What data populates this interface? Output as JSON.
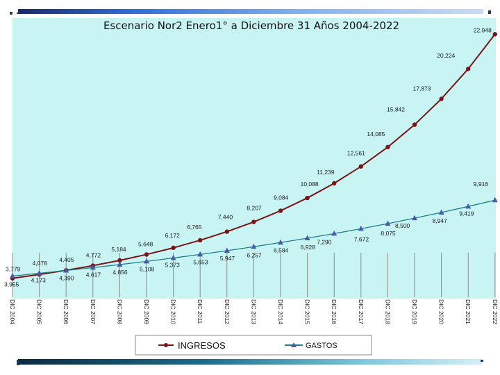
{
  "chart_data": {
    "type": "line",
    "title": "Escenario Nor2 Enero1° a Diciembre 31 Años 2004-2022",
    "xlabel": "",
    "ylabel": "",
    "ylim": [
      3000,
      24000
    ],
    "categories": [
      "DIC 2004",
      "DIC 2005",
      "DIC 2006",
      "DIC 2007",
      "DIC 2008",
      "DIC 2009",
      "DIC 2010",
      "DIC 2011",
      "DIC 2012",
      "DIC 2013",
      "DIC 2014",
      "DIC 2015",
      "DIC 2016",
      "DIC 2017",
      "DIC 2018",
      "DIC 2019",
      "DIC 2020",
      "DIC 2021",
      "DIC 2022"
    ],
    "series": [
      {
        "name": "INGRESOS",
        "color": "#7b1414",
        "marker": "circle",
        "values": [
          3779,
          4078,
          4405,
          4772,
          5184,
          5648,
          6172,
          6765,
          7440,
          8207,
          9084,
          10088,
          11239,
          12561,
          14085,
          15842,
          17873,
          20224,
          22948
        ],
        "labels": [
          "3,779",
          "4,078",
          "4,405",
          "4,772",
          "5,184",
          "5,648",
          "6,172",
          "6,765",
          "7,440",
          "8,207",
          "9,084",
          "10,088",
          "11,239",
          "12,561",
          "14,085",
          "15,842",
          "17,873",
          "20,224",
          "22,948"
        ]
      },
      {
        "name": "GASTOS",
        "color": "#1d7f86",
        "marker": "triangle",
        "values": [
          3955,
          4173,
          4390,
          4617,
          4856,
          5108,
          5373,
          5653,
          5947,
          6257,
          6584,
          6928,
          7290,
          7672,
          8075,
          8500,
          8947,
          9419,
          9916
        ],
        "labels": [
          "3,955",
          "4,173",
          "4,390",
          "4,617",
          "4,856",
          "5,108",
          "5,373",
          "5,653",
          "5,947",
          "6,257",
          "6,584",
          "6,928",
          "7,290",
          "7,672",
          "8,075",
          "8,500",
          "8,947",
          "9,419",
          "9,916"
        ]
      }
    ],
    "legend": {
      "position": "bottom",
      "entries": [
        "INGRESOS",
        "GASTOS"
      ]
    }
  }
}
